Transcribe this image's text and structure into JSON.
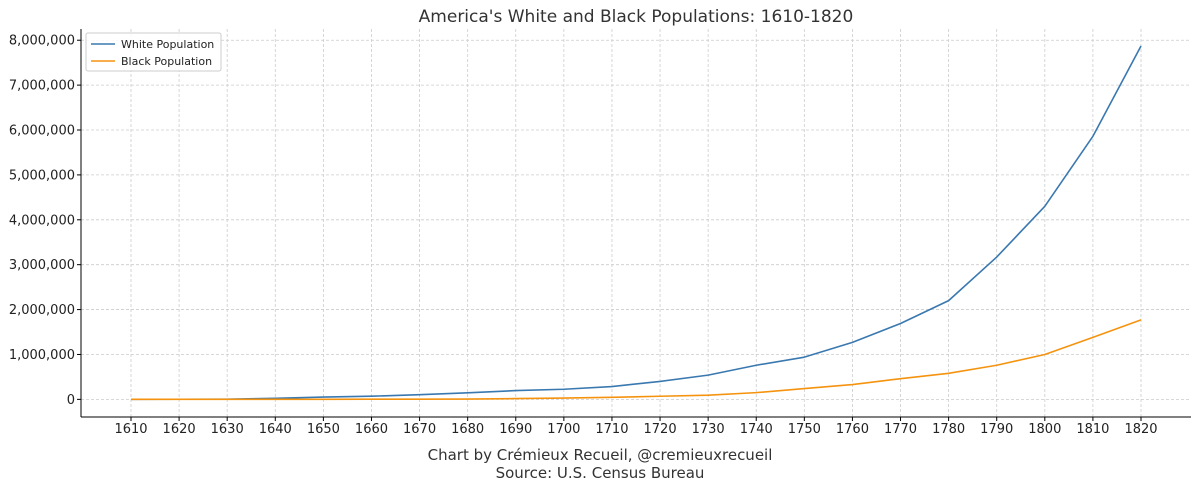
{
  "chart_data": {
    "type": "line",
    "title": "America's White and Black Populations: 1610-1820",
    "xlabel": "",
    "ylabel": "",
    "x": [
      1610,
      1620,
      1630,
      1640,
      1650,
      1660,
      1670,
      1680,
      1690,
      1700,
      1710,
      1720,
      1730,
      1740,
      1750,
      1760,
      1770,
      1780,
      1790,
      1800,
      1810,
      1820
    ],
    "x_tick_labels": [
      "1610",
      "1620",
      "1630",
      "1640",
      "1650",
      "1660",
      "1670",
      "1680",
      "1690",
      "1700",
      "1710",
      "1720",
      "1730",
      "1740",
      "1750",
      "1760",
      "1770",
      "1780",
      "1790",
      "1800",
      "1810",
      "1820"
    ],
    "y_ticks": [
      0,
      1000000,
      2000000,
      3000000,
      4000000,
      5000000,
      6000000,
      7000000,
      8000000
    ],
    "y_tick_labels": [
      "0",
      "1,000,000",
      "2,000,000",
      "3,000,000",
      "4,000,000",
      "5,000,000",
      "6,000,000",
      "7,000,000",
      "8,000,000"
    ],
    "xlim": [
      1610,
      1820
    ],
    "ylim": [
      -393000,
      8250000
    ],
    "grid": true,
    "legend_position": "top-left",
    "series": [
      {
        "name": "White Population",
        "color": "#3a78b0",
        "values": [
          350,
          2300,
          4600,
          25000,
          50000,
          70000,
          105000,
          145000,
          195000,
          225000,
          285000,
          400000,
          540000,
          760000,
          940000,
          1270000,
          1690000,
          2200000,
          3170000,
          4300000,
          5860000,
          7870000
        ]
      },
      {
        "name": "Black Population",
        "color": "#f5930f",
        "values": [
          0,
          0,
          60,
          600,
          1600,
          2900,
          4500,
          7000,
          17000,
          28000,
          45000,
          69000,
          92000,
          150000,
          240000,
          330000,
          460000,
          580000,
          760000,
          1000000,
          1380000,
          1770000
        ]
      }
    ]
  },
  "footer": {
    "credit": "Chart by Crémieux Recueil, @cremieuxrecueil",
    "source": "Source: U.S. Census Bureau"
  }
}
